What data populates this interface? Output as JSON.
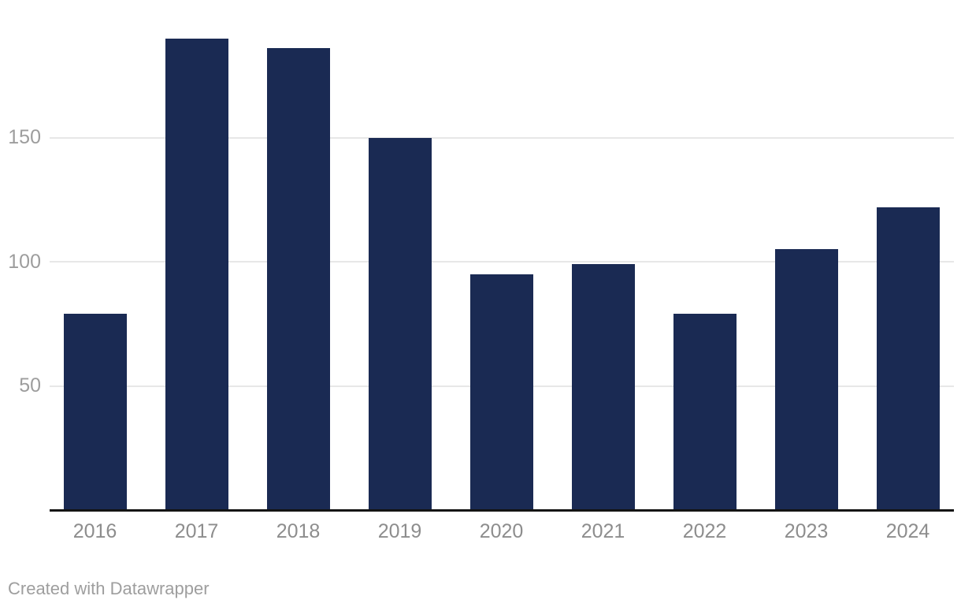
{
  "chart_data": {
    "type": "bar",
    "categories": [
      "2016",
      "2017",
      "2018",
      "2019",
      "2020",
      "2021",
      "2022",
      "2023",
      "2024"
    ],
    "values": [
      79,
      190,
      186,
      150,
      95,
      99,
      79,
      105,
      122
    ],
    "title": "",
    "xlabel": "",
    "ylabel": "",
    "ylim": [
      0,
      200
    ],
    "yticks": [
      50,
      100,
      150
    ],
    "grid": true,
    "legend": "none",
    "bar_color": "#1a2a53"
  },
  "colors": {
    "bar": "#1a2a53",
    "gridline": "#e7e7e7",
    "axis_line": "#141414",
    "y_tick_label": "#9d9d9d",
    "x_tick_label": "#8d8d8d",
    "credit_text": "#9e9e9e"
  },
  "footer": {
    "credit": "Created with Datawrapper"
  }
}
